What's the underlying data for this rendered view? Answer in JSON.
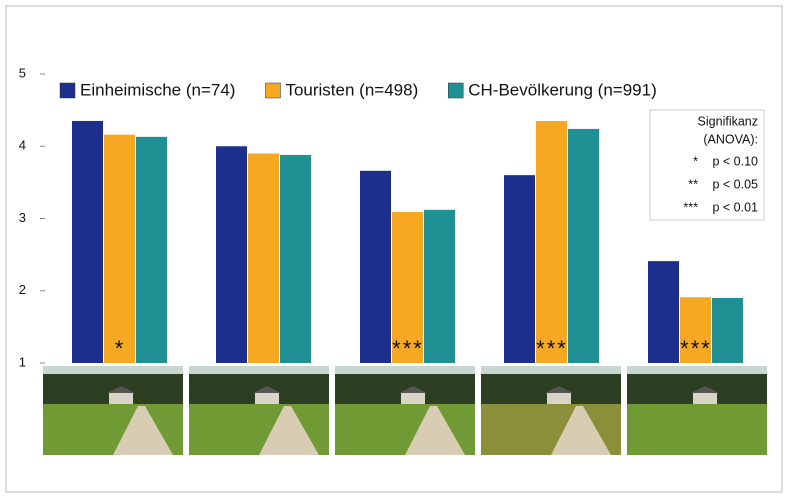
{
  "chart_data": {
    "type": "bar",
    "categories": [
      null,
      null,
      null,
      null,
      null
    ],
    "series": [
      {
        "name": "Einheimische (n=74)",
        "color": "#1c2f8c",
        "values": [
          4.35,
          4.0,
          3.66,
          3.6,
          2.41
        ]
      },
      {
        "name": "Touristen (n=498)",
        "color": "#f7a823",
        "values": [
          4.16,
          3.9,
          3.09,
          4.35,
          1.91
        ]
      },
      {
        "name": "CH-Bevölkerung (n=991)",
        "color": "#1f9194",
        "values": [
          4.13,
          3.88,
          3.12,
          4.24,
          1.9
        ]
      }
    ],
    "ylim": [
      1,
      5
    ],
    "yticks": [
      1,
      2,
      3,
      4,
      5
    ],
    "grid": false,
    "legend": "top-left",
    "significance": [
      "*",
      null,
      "***",
      "***",
      "***"
    ],
    "significance_legend": {
      "title_lines": [
        "Signifikanz",
        "(ANOVA):"
      ],
      "items": [
        {
          "symbol": "*",
          "text": "p < 0.10"
        },
        {
          "symbol": "**",
          "text": "p < 0.05"
        },
        {
          "symbol": "***",
          "text": "p < 0.01"
        }
      ]
    }
  }
}
